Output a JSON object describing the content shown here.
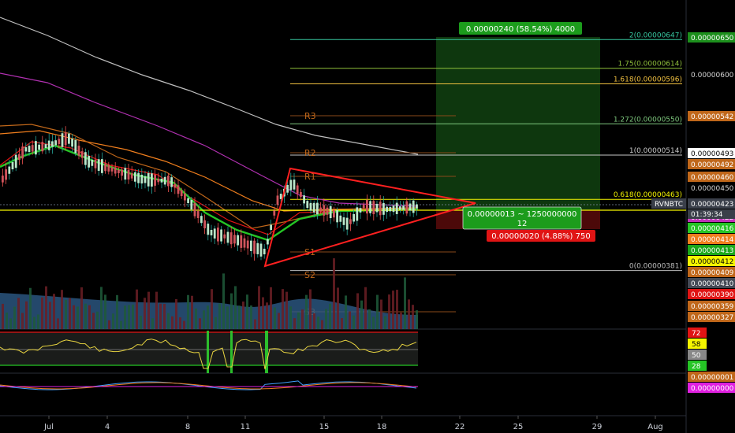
{
  "symbol": "RVNBTC",
  "countdown": "01:39:34",
  "price_axis_labels": [
    {
      "text": "0.00000650",
      "bg": "#1c8f1c",
      "fg": "#ffffff"
    },
    {
      "text": "0.00000600",
      "bg": "",
      "fg": "#d6d6d6"
    },
    {
      "text": "0.00000542",
      "bg": "#c0671a",
      "fg": "#ffffff"
    },
    {
      "text": "0.00000493",
      "bg": "#ffffff",
      "fg": "#000000"
    },
    {
      "text": "0.00000492",
      "bg": "#c0671a",
      "fg": "#ffffff"
    },
    {
      "text": "0.00000460",
      "bg": "#c0671a",
      "fg": "#ffffff"
    },
    {
      "text": "0.00000450",
      "bg": "",
      "fg": "#d6d6d6"
    },
    {
      "text": "0.00000423",
      "bg": "#3a3f4a",
      "fg": "#ffffff"
    },
    {
      "text": "0.00000422",
      "bg": "#c030b8",
      "fg": "#ffffff"
    },
    {
      "text": "0.00000416",
      "bg": "#25c525",
      "fg": "#ffffff"
    },
    {
      "text": "0.00000414",
      "bg": "#f07e1d",
      "fg": "#ffffff"
    },
    {
      "text": "0.00000413",
      "bg": "#1aa81a",
      "fg": "#ffffff"
    },
    {
      "text": "0.00000412",
      "bg": "#f5f500",
      "fg": "#000000"
    },
    {
      "text": "0.00000409",
      "bg": "#c0671a",
      "fg": "#ffffff"
    },
    {
      "text": "0.00000410",
      "bg": "#444a56",
      "fg": "#ffffff"
    },
    {
      "text": "0.00000390",
      "bg": "#e01414",
      "fg": "#ffffff"
    },
    {
      "text": "0.00000359",
      "bg": "#c0671a",
      "fg": "#ffffff"
    },
    {
      "text": "0.00000327",
      "bg": "#c0671a",
      "fg": "#ffffff"
    }
  ],
  "rsi_axis_labels": [
    {
      "text": "72",
      "bg": "#e01414",
      "fg": "#ffffff"
    },
    {
      "text": "58",
      "bg": "#f5f500",
      "fg": "#000000"
    },
    {
      "text": "50",
      "bg": "#888888",
      "fg": "#ffffff"
    },
    {
      "text": "28",
      "bg": "#25c525",
      "fg": "#ffffff"
    }
  ],
  "macd_axis_labels": [
    {
      "text": "0.00000001",
      "bg": "#c0671a",
      "fg": "#ffffff"
    },
    {
      "text": "0.00000000",
      "bg": "#e020e0",
      "fg": "#ffffff"
    }
  ],
  "time_labels": [
    "Jul",
    "4",
    "8",
    "11",
    "15",
    "18",
    "22",
    "25",
    "29",
    "Aug"
  ],
  "fib_levels": [
    {
      "label": "2(0.00000647)",
      "value": 647
    },
    {
      "label": "1.75(0.00000614)",
      "value": 614
    },
    {
      "label": "1.618(0.00000596)",
      "value": 596
    },
    {
      "label": "1.272(0.00000550)",
      "value": 550
    },
    {
      "label": "1(0.00000514)",
      "value": 514
    },
    {
      "label": "0.618(0.00000463)",
      "value": 463
    },
    {
      "label": "0(0.00000381)",
      "value": 381
    }
  ],
  "pivots": [
    "R3",
    "R2",
    "R1",
    "S1",
    "S2",
    "S3"
  ],
  "position": {
    "target_label": "0.00000240 (58.54%) 4000",
    "ratio_label_line1": "0.00000013 ~ 1250000000",
    "ratio_label_line2": "12",
    "stop_label": "0.00000020 (4.88%) 750"
  },
  "chart_data": {
    "type": "candlestick",
    "symbol": "RVNBTC",
    "price_range": [
      327,
      650
    ],
    "price_unit": "satoshi (×1e-8 BTC)",
    "current_price": 423,
    "fib_extension": [
      381,
      463,
      514,
      550,
      596,
      614,
      647
    ],
    "rsi_levels": [
      72,
      58,
      50,
      28
    ],
    "triangle": {
      "upper_start": 494,
      "lower_start": 391,
      "apex": 430
    },
    "long_position": {
      "entry": 410,
      "target": 650,
      "stop": 390
    }
  }
}
